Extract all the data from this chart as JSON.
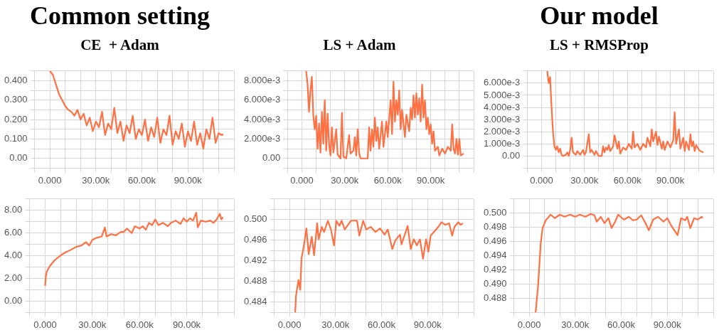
{
  "chart_data": [
    {
      "type": "line",
      "title": "Common setting",
      "subtitle": "CE  + Adam",
      "grid": true,
      "legend": false,
      "xlim": [
        -10000,
        120000
      ],
      "xticks": [
        {
          "value": -10000,
          "label": null
        },
        {
          "value": 0,
          "label": "0.000"
        },
        {
          "value": 10000,
          "label": null
        },
        {
          "value": 20000,
          "label": null
        },
        {
          "value": 30000,
          "label": "30.00k"
        },
        {
          "value": 40000,
          "label": null
        },
        {
          "value": 50000,
          "label": null
        },
        {
          "value": 60000,
          "label": "60.00k"
        },
        {
          "value": 70000,
          "label": null
        },
        {
          "value": 80000,
          "label": null
        },
        {
          "value": 90000,
          "label": "90.00k"
        },
        {
          "value": 100000,
          "label": null
        },
        {
          "value": 110000,
          "label": null
        },
        {
          "value": 120000,
          "label": null
        }
      ],
      "ylim": [
        -0.05,
        0.45
      ],
      "yticks": [
        {
          "value": -0.05,
          "label": null
        },
        {
          "value": 0,
          "label": "0.00"
        },
        {
          "value": 0.05,
          "label": null
        },
        {
          "value": 0.1,
          "label": "0.100"
        },
        {
          "value": 0.15,
          "label": null
        },
        {
          "value": 0.2,
          "label": "0.200"
        },
        {
          "value": 0.25,
          "label": null
        },
        {
          "value": 0.3,
          "label": "0.300"
        },
        {
          "value": 0.35,
          "label": null
        },
        {
          "value": 0.4,
          "label": "0.400"
        },
        {
          "value": 0.45,
          "label": null
        }
      ],
      "x": [
        0,
        2000,
        4000,
        6000,
        8000,
        10000,
        12000,
        14000,
        16000,
        18000,
        20000,
        22000,
        24000,
        26000,
        28000,
        30000,
        32000,
        34000,
        36000,
        38000,
        40000,
        42000,
        44000,
        46000,
        48000,
        50000,
        52000,
        54000,
        56000,
        58000,
        60000,
        62000,
        64000,
        66000,
        68000,
        70000,
        72000,
        74000,
        76000,
        78000,
        80000,
        82000,
        84000,
        86000,
        88000,
        90000,
        92000,
        94000,
        96000,
        98000,
        100000,
        102000,
        104000,
        106000,
        108000,
        110000,
        112000,
        113000
      ],
      "series": [
        {
          "color": "#ff7043",
          "values": [
            0.45,
            0.43,
            0.38,
            0.33,
            0.3,
            0.27,
            0.25,
            0.24,
            0.22,
            0.25,
            0.2,
            0.23,
            0.17,
            0.21,
            0.14,
            0.19,
            0.16,
            0.24,
            0.12,
            0.18,
            0.15,
            0.26,
            0.13,
            0.19,
            0.09,
            0.17,
            0.13,
            0.22,
            0.1,
            0.15,
            0.12,
            0.2,
            0.09,
            0.16,
            0.11,
            0.21,
            0.08,
            0.15,
            0.12,
            0.22,
            0.07,
            0.14,
            0.1,
            0.18,
            0.06,
            0.14,
            0.09,
            0.19,
            0.07,
            0.13,
            0.05,
            0.15,
            0.1,
            0.21,
            0.08,
            0.13,
            0.12,
            0.125
          ]
        }
      ]
    },
    {
      "type": "line",
      "subtitle": "LS + Adam",
      "grid": true,
      "legend": false,
      "xlim": [
        -10000,
        120000
      ],
      "xticks": [
        {
          "value": -10000,
          "label": null
        },
        {
          "value": 0,
          "label": "0.000"
        },
        {
          "value": 10000,
          "label": null
        },
        {
          "value": 20000,
          "label": null
        },
        {
          "value": 30000,
          "label": "30.00k"
        },
        {
          "value": 40000,
          "label": null
        },
        {
          "value": 50000,
          "label": null
        },
        {
          "value": 60000,
          "label": "60.00k"
        },
        {
          "value": 70000,
          "label": null
        },
        {
          "value": 80000,
          "label": null
        },
        {
          "value": 90000,
          "label": "90.00k"
        },
        {
          "value": 100000,
          "label": null
        },
        {
          "value": 110000,
          "label": null
        },
        {
          "value": 120000,
          "label": null
        }
      ],
      "ylim": [
        -0.001,
        0.009
      ],
      "yticks": [
        {
          "value": -0.001,
          "label": null
        },
        {
          "value": 0,
          "label": "0.00"
        },
        {
          "value": 0.001,
          "label": null
        },
        {
          "value": 0.002,
          "label": "2.000e-3"
        },
        {
          "value": 0.003,
          "label": null
        },
        {
          "value": 0.004,
          "label": "4.000e-3"
        },
        {
          "value": 0.005,
          "label": null
        },
        {
          "value": 0.006,
          "label": "6.000e-3"
        },
        {
          "value": 0.007,
          "label": null
        },
        {
          "value": 0.008,
          "label": "8.000e-3"
        },
        {
          "value": 0.009,
          "label": null
        }
      ],
      "x": [
        3000,
        4000,
        5000,
        6000,
        7000,
        8000,
        9000,
        10000,
        11000,
        12000,
        13000,
        14000,
        15000,
        16000,
        17000,
        18000,
        19000,
        20000,
        21000,
        22000,
        24000,
        25000,
        27000,
        28000,
        29000,
        31000,
        32000,
        33000,
        34000,
        36000,
        37000,
        38000,
        39000,
        40000,
        41000,
        46000,
        47000,
        48000,
        49000,
        50000,
        51000,
        52000,
        53000,
        54000,
        56000,
        57000,
        59000,
        60000,
        62000,
        63000,
        64000,
        65000,
        66000,
        67000,
        68000,
        69000,
        70000,
        72000,
        73000,
        75000,
        76000,
        77000,
        78000,
        79000,
        80000,
        81000,
        82000,
        83000,
        84000,
        85000,
        86000,
        87000,
        88000,
        89000,
        90000,
        91000,
        92000,
        93000,
        95000,
        96000,
        98000,
        100000,
        102000,
        104000,
        105000,
        106000,
        107000,
        108000,
        109000,
        110000,
        111000,
        113000
      ],
      "series": [
        {
          "color": "#ff7043",
          "values": [
            0.009,
            0.0076,
            0.0048,
            0.007,
            0.0084,
            0.0044,
            0.003,
            0.0044,
            0.001,
            0.0036,
            0.0006,
            0.0048,
            0.0015,
            0.006,
            0.0008,
            0.0046,
            0.0014,
            0.0003,
            0.0032,
            0.0006,
            0.003,
            0.0004,
            0,
            0.0047,
            0.0002,
            0,
            0.0012,
            0.0024,
            0.0005,
            0.0008,
            0.0022,
            0.0003,
            0.003,
            0.0006,
            0,
            0,
            0.0032,
            0.0008,
            0.003,
            0.0012,
            0.0042,
            0.0018,
            0.0032,
            0.001,
            0.0038,
            0.0012,
            0.0038,
            0.0022,
            0.006,
            0.0025,
            0.0079,
            0.0038,
            0.006,
            0.0045,
            0.007,
            0.003,
            0.005,
            0.0022,
            0.0045,
            0.0028,
            0.0052,
            0.004,
            0.0065,
            0.0042,
            0.0067,
            0.0045,
            0.0062,
            0.0038,
            0.0076,
            0.0042,
            0.006,
            0.003,
            0.0042,
            0.0025,
            0.0035,
            0.0015,
            0.0028,
            0.0008,
            0.0012,
            0.0003,
            0.001,
            0.0005,
            0.0012,
            0.0008,
            0.0035,
            0.001,
            0.0005,
            0.002,
            0.0004,
            0.002,
            0.0003,
            0.0005
          ]
        }
      ]
    },
    {
      "type": "line",
      "title": "Our model",
      "subtitle": "LS + RMSProp",
      "grid": true,
      "legend": false,
      "xlim": [
        -10000,
        120000
      ],
      "xticks": [
        {
          "value": -10000,
          "label": null
        },
        {
          "value": 0,
          "label": "0.000"
        },
        {
          "value": 10000,
          "label": null
        },
        {
          "value": 20000,
          "label": null
        },
        {
          "value": 30000,
          "label": "30.00k"
        },
        {
          "value": 40000,
          "label": null
        },
        {
          "value": 50000,
          "label": null
        },
        {
          "value": 60000,
          "label": "60.00k"
        },
        {
          "value": 70000,
          "label": null
        },
        {
          "value": 80000,
          "label": null
        },
        {
          "value": 90000,
          "label": "90.00k"
        },
        {
          "value": 100000,
          "label": null
        },
        {
          "value": 110000,
          "label": null
        },
        {
          "value": 120000,
          "label": null
        }
      ],
      "ylim": [
        -0.001,
        0.007
      ],
      "yticks": [
        {
          "value": -0.001,
          "label": null
        },
        {
          "value": 0,
          "label": "0.00"
        },
        {
          "value": 0.001,
          "label": "1.000e-3"
        },
        {
          "value": 0.002,
          "label": "2.000e-3"
        },
        {
          "value": 0.003,
          "label": "3.000e-3"
        },
        {
          "value": 0.004,
          "label": "4.000e-3"
        },
        {
          "value": 0.005,
          "label": "5.000e-3"
        },
        {
          "value": 0.006,
          "label": "6.000e-3"
        },
        {
          "value": 0.007,
          "label": null
        }
      ],
      "x": [
        4000,
        5000,
        6000,
        7000,
        8000,
        9000,
        10000,
        11000,
        12000,
        13000,
        14000,
        15000,
        17000,
        18000,
        19000,
        20000,
        21000,
        22000,
        24000,
        25000,
        27000,
        29000,
        30000,
        31000,
        33000,
        34000,
        35000,
        37000,
        38000,
        40000,
        42000,
        43000,
        44000,
        45000,
        46000,
        47000,
        48000,
        50000,
        51000,
        53000,
        54000,
        55000,
        57000,
        59000,
        61000,
        63000,
        64000,
        65000,
        67000,
        69000,
        71000,
        73000,
        74000,
        76000,
        77000,
        78000,
        80000,
        81000,
        82000,
        84000,
        85000,
        86000,
        88000,
        90000,
        92000,
        93000,
        94000,
        96000,
        97000,
        99000,
        100000,
        101000,
        103000,
        104000,
        105000,
        106000,
        107000,
        108000,
        110000,
        111000,
        113000
      ],
      "series": [
        {
          "color": "#ff7043",
          "values": [
            0.007,
            0.006,
            0.0065,
            0.004,
            0.002,
            0.0008,
            0.0005,
            0.0008,
            0.0003,
            0.0006,
            0.0001,
            0,
            0.0001,
            0.0003,
            0,
            0.0005,
            0.0015,
            0.0003,
            0.0001,
            0.0004,
            0.0001,
            0.0005,
            0.0001,
            0.0003,
            0.0018,
            0.0003,
            0.0005,
            0.0001,
            0.0004,
            0,
            0,
            0.0008,
            0.0003,
            0.0007,
            0.0005,
            0.0009,
            0.0004,
            0.0008,
            0.0017,
            0.0006,
            0.0012,
            0.0002,
            0.0007,
            0.0005,
            0.001,
            0.0006,
            0.002,
            0.0007,
            0.001,
            0.0005,
            0.001,
            0.0007,
            0.0015,
            0.0008,
            0.0022,
            0.0012,
            0.002,
            0.0009,
            0.0016,
            0.0006,
            0.0012,
            0.0005,
            0.0012,
            0.0007,
            0.0013,
            0.0036,
            0.001,
            0.0022,
            0.0006,
            0.0015,
            0.0004,
            0.0012,
            0.0005,
            0.0018,
            0.0008,
            0.0012,
            0.0004,
            0.0009,
            0.0005,
            0.0004,
            0.0003
          ]
        }
      ]
    },
    {
      "type": "line",
      "grid": true,
      "legend": false,
      "xlim": [
        -10000,
        120000
      ],
      "xticks": [
        {
          "value": -10000,
          "label": null
        },
        {
          "value": 0,
          "label": "0.000"
        },
        {
          "value": 10000,
          "label": null
        },
        {
          "value": 20000,
          "label": null
        },
        {
          "value": 30000,
          "label": "30.00k"
        },
        {
          "value": 40000,
          "label": null
        },
        {
          "value": 50000,
          "label": null
        },
        {
          "value": 60000,
          "label": "60.00k"
        },
        {
          "value": 70000,
          "label": null
        },
        {
          "value": 80000,
          "label": null
        },
        {
          "value": 90000,
          "label": "90.00k"
        },
        {
          "value": 100000,
          "label": null
        },
        {
          "value": 110000,
          "label": null
        },
        {
          "value": 120000,
          "label": null
        }
      ],
      "ylim": [
        -1,
        9
      ],
      "yticks": [
        {
          "value": -1,
          "label": null
        },
        {
          "value": 0,
          "label": "0.00"
        },
        {
          "value": 1,
          "label": null
        },
        {
          "value": 2,
          "label": "2.00"
        },
        {
          "value": 3,
          "label": null
        },
        {
          "value": 4,
          "label": "4.00"
        },
        {
          "value": 5,
          "label": null
        },
        {
          "value": 6,
          "label": "6.00"
        },
        {
          "value": 7,
          "label": null
        },
        {
          "value": 8,
          "label": "8.00"
        },
        {
          "value": 9,
          "label": null
        }
      ],
      "x": [
        0,
        500,
        1000,
        3000,
        6000,
        10000,
        13000,
        16000,
        20000,
        23000,
        26000,
        28000,
        30000,
        33000,
        36000,
        38000,
        39000,
        42000,
        45000,
        48000,
        50000,
        52000,
        55000,
        57000,
        60000,
        62000,
        64000,
        66000,
        68000,
        70000,
        72000,
        75000,
        78000,
        80000,
        83000,
        86000,
        88000,
        90000,
        92000,
        94000,
        96000,
        97000,
        99000,
        102000,
        105000,
        107000,
        109000,
        111000,
        112000,
        113000
      ],
      "series": [
        {
          "color": "#ff7043",
          "values": [
            1.35,
            2.2,
            2.6,
            3.1,
            3.6,
            4.05,
            4.3,
            4.5,
            4.8,
            4.9,
            5.2,
            4.9,
            5.4,
            5.6,
            5.7,
            6.5,
            5.7,
            5.9,
            5.8,
            6.1,
            6.1,
            6.4,
            6,
            6.6,
            6.4,
            6.6,
            6.3,
            6.9,
            6.7,
            7.2,
            6.7,
            6.9,
            6.6,
            6.9,
            7.1,
            6.8,
            7.3,
            7,
            7.3,
            7.1,
            7.8,
            6.5,
            7.1,
            7,
            7.1,
            6.9,
            7.2,
            7.7,
            7.2,
            7.4
          ]
        }
      ]
    },
    {
      "type": "line",
      "grid": true,
      "legend": false,
      "xlim": [
        -10000,
        120000
      ],
      "xticks": [
        {
          "value": -10000,
          "label": null
        },
        {
          "value": 0,
          "label": "0.000"
        },
        {
          "value": 10000,
          "label": null
        },
        {
          "value": 20000,
          "label": null
        },
        {
          "value": 30000,
          "label": "30.00k"
        },
        {
          "value": 40000,
          "label": null
        },
        {
          "value": 50000,
          "label": null
        },
        {
          "value": 60000,
          "label": "60.00k"
        },
        {
          "value": 70000,
          "label": null
        },
        {
          "value": 80000,
          "label": null
        },
        {
          "value": 90000,
          "label": "90.00k"
        },
        {
          "value": 100000,
          "label": null
        },
        {
          "value": 110000,
          "label": null
        },
        {
          "value": 120000,
          "label": null
        }
      ],
      "ylim": [
        0.482,
        0.504
      ],
      "yticks": [
        {
          "value": 0.482,
          "label": null
        },
        {
          "value": 0.484,
          "label": "0.484"
        },
        {
          "value": 0.486,
          "label": null
        },
        {
          "value": 0.488,
          "label": "0.488"
        },
        {
          "value": 0.49,
          "label": null
        },
        {
          "value": 0.492,
          "label": "0.492"
        },
        {
          "value": 0.494,
          "label": null
        },
        {
          "value": 0.496,
          "label": "0.496"
        },
        {
          "value": 0.498,
          "label": null
        },
        {
          "value": 0.5,
          "label": "0.500"
        },
        {
          "value": 0.502,
          "label": null
        },
        {
          "value": 0.504,
          "label": null
        }
      ],
      "x": [
        3700,
        4200,
        5800,
        7000,
        7800,
        9500,
        11000,
        12500,
        14500,
        16000,
        18000,
        19000,
        21000,
        22500,
        25000,
        27000,
        29000,
        30500,
        32500,
        34000,
        36000,
        40000,
        44000,
        45500,
        48000,
        50000,
        53000,
        56000,
        59000,
        62000,
        64000,
        67000,
        69000,
        72000,
        73000,
        77000,
        79000,
        81000,
        83000,
        85000,
        87000,
        89000,
        90500,
        92000,
        95000,
        97500,
        99000,
        101500,
        104000,
        106000,
        107500,
        110000,
        111500,
        113000
      ],
      "series": [
        {
          "color": "#ff7043",
          "values": [
            0.482,
            0.4852,
            0.4883,
            0.4864,
            0.4924,
            0.4952,
            0.4983,
            0.4933,
            0.4967,
            0.4931,
            0.4993,
            0.4962,
            0.4986,
            0.4976,
            0.4998,
            0.4981,
            0.495,
            0.4998,
            0.4988,
            0.4998,
            0.4981,
            0.4998,
            0.4998,
            0.4969,
            0.4998,
            0.4981,
            0.4986,
            0.4976,
            0.4983,
            0.4971,
            0.4981,
            0.4943,
            0.496,
            0.4971,
            0.4952,
            0.4988,
            0.4943,
            0.4962,
            0.495,
            0.4962,
            0.4924,
            0.4962,
            0.4938,
            0.4969,
            0.4979,
            0.4988,
            0.4995,
            0.499,
            0.4993,
            0.4969,
            0.4986,
            0.4995,
            0.499,
            0.4993
          ]
        }
      ]
    },
    {
      "type": "line",
      "grid": true,
      "legend": false,
      "xlim": [
        -10000,
        120000
      ],
      "xticks": [
        {
          "value": -10000,
          "label": null
        },
        {
          "value": 0,
          "label": "0.000"
        },
        {
          "value": 10000,
          "label": null
        },
        {
          "value": 20000,
          "label": null
        },
        {
          "value": 30000,
          "label": "30.00k"
        },
        {
          "value": 40000,
          "label": null
        },
        {
          "value": 50000,
          "label": null
        },
        {
          "value": 60000,
          "label": "60.00k"
        },
        {
          "value": 70000,
          "label": null
        },
        {
          "value": 80000,
          "label": null
        },
        {
          "value": 90000,
          "label": "90.00k"
        },
        {
          "value": 100000,
          "label": null
        },
        {
          "value": 110000,
          "label": null
        },
        {
          "value": 120000,
          "label": null
        }
      ],
      "ylim": [
        0.486,
        0.502
      ],
      "yticks": [
        {
          "value": 0.486,
          "label": null
        },
        {
          "value": 0.488,
          "label": "0.488"
        },
        {
          "value": 0.49,
          "label": "0.490"
        },
        {
          "value": 0.492,
          "label": "0.492"
        },
        {
          "value": 0.494,
          "label": "0.494"
        },
        {
          "value": 0.496,
          "label": "0.496"
        },
        {
          "value": 0.498,
          "label": "0.498"
        },
        {
          "value": 0.5,
          "label": "0.500"
        },
        {
          "value": 0.502,
          "label": null
        }
      ],
      "x": [
        4200,
        5800,
        7500,
        8700,
        10800,
        14000,
        16700,
        20000,
        23000,
        26700,
        30000,
        33000,
        36700,
        40000,
        42500,
        44000,
        46700,
        49000,
        51700,
        53700,
        56000,
        58000,
        61700,
        65000,
        67500,
        70000,
        73000,
        75800,
        78000,
        80800,
        84000,
        87500,
        90000,
        93000,
        96700,
        99000,
        101700,
        103000,
        105000,
        107500,
        110000,
        112500,
        113000
      ],
      "series": [
        {
          "color": "#ff7043",
          "values": [
            0.486,
            0.4898,
            0.4957,
            0.4979,
            0.499,
            0.4998,
            0.4993,
            0.4998,
            0.4995,
            0.4998,
            0.4995,
            0.4998,
            0.4995,
            0.4999,
            0.4997,
            0.4988,
            0.4995,
            0.4986,
            0.4993,
            0.4979,
            0.4988,
            0.4998,
            0.4991,
            0.4995,
            0.499,
            0.4991,
            0.4997,
            0.4986,
            0.4976,
            0.4991,
            0.4995,
            0.4988,
            0.4993,
            0.4981,
            0.4969,
            0.4993,
            0.499,
            0.4995,
            0.4979,
            0.4993,
            0.4991,
            0.4995,
            0.4993
          ]
        }
      ]
    }
  ]
}
